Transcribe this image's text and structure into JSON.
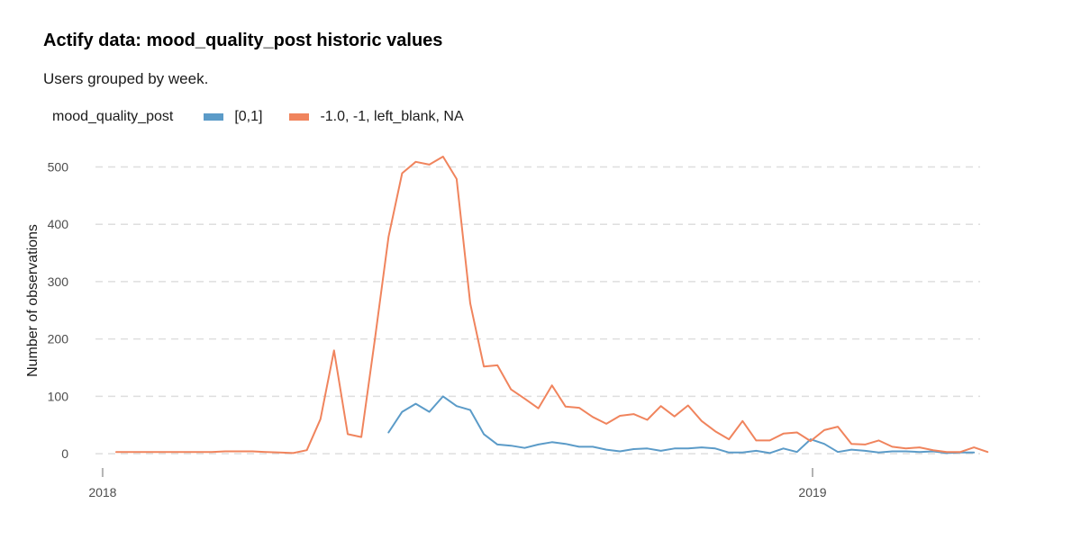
{
  "header": {
    "title": "Actify data: mood_quality_post historic values",
    "subtitle": "Users grouped by week."
  },
  "legend": {
    "title": "mood_quality_post",
    "items": [
      {
        "label": "[0,1]",
        "color": "#5b9bc8"
      },
      {
        "label": "-1.0, -1, left_blank, NA",
        "color": "#f0845d"
      }
    ]
  },
  "chart_data": {
    "type": "line",
    "title": "Actify data: mood_quality_post historic values",
    "subtitle": "Users grouped by week.",
    "xlabel": "",
    "ylabel": "Number of observations",
    "x_axis_type": "date",
    "xlim": [
      "2017-12-20",
      "2019-03-30"
    ],
    "ylim": [
      -25,
      540
    ],
    "y_ticks": [
      0,
      100,
      200,
      300,
      400,
      500
    ],
    "x_ticks": [
      {
        "label": "2018",
        "date": "2018-01-01"
      },
      {
        "label": "2019",
        "date": "2019-01-01"
      }
    ],
    "grid": "horizontal dashed",
    "legend_position": "top-left",
    "series": [
      {
        "name": "[0,1]",
        "color": "#5b9bc8",
        "points": [
          [
            "2018-05-28",
            37
          ],
          [
            "2018-06-04",
            73
          ],
          [
            "2018-06-11",
            87
          ],
          [
            "2018-06-18",
            73
          ],
          [
            "2018-06-25",
            100
          ],
          [
            "2018-07-02",
            83
          ],
          [
            "2018-07-09",
            76
          ],
          [
            "2018-07-16",
            34
          ],
          [
            "2018-07-23",
            16
          ],
          [
            "2018-07-30",
            14
          ],
          [
            "2018-08-06",
            10
          ],
          [
            "2018-08-13",
            16
          ],
          [
            "2018-08-20",
            20
          ],
          [
            "2018-08-27",
            17
          ],
          [
            "2018-09-03",
            12
          ],
          [
            "2018-09-10",
            12
          ],
          [
            "2018-09-17",
            7
          ],
          [
            "2018-09-24",
            4
          ],
          [
            "2018-10-01",
            8
          ],
          [
            "2018-10-08",
            9
          ],
          [
            "2018-10-15",
            5
          ],
          [
            "2018-10-22",
            9
          ],
          [
            "2018-10-29",
            9
          ],
          [
            "2018-11-05",
            11
          ],
          [
            "2018-11-12",
            9
          ],
          [
            "2018-11-19",
            2
          ],
          [
            "2018-11-26",
            2
          ],
          [
            "2018-12-03",
            5
          ],
          [
            "2018-12-10",
            1
          ],
          [
            "2018-12-17",
            9
          ],
          [
            "2018-12-24",
            3
          ],
          [
            "2018-12-31",
            25
          ],
          [
            "2019-01-07",
            17
          ],
          [
            "2019-01-14",
            3
          ],
          [
            "2019-01-21",
            7
          ],
          [
            "2019-01-28",
            5
          ],
          [
            "2019-02-04",
            2
          ],
          [
            "2019-02-11",
            4
          ],
          [
            "2019-02-18",
            4
          ],
          [
            "2019-02-25",
            3
          ],
          [
            "2019-03-04",
            4
          ],
          [
            "2019-03-11",
            1
          ],
          [
            "2019-03-18",
            2
          ],
          [
            "2019-03-25",
            2
          ]
        ]
      },
      {
        "name": "-1.0, -1, left_blank, NA",
        "color": "#f0845d",
        "points": [
          [
            "2018-01-08",
            3
          ],
          [
            "2018-01-15",
            3
          ],
          [
            "2018-01-22",
            3
          ],
          [
            "2018-01-29",
            3
          ],
          [
            "2018-02-05",
            3
          ],
          [
            "2018-02-12",
            3
          ],
          [
            "2018-02-19",
            3
          ],
          [
            "2018-02-26",
            3
          ],
          [
            "2018-03-05",
            4
          ],
          [
            "2018-03-12",
            4
          ],
          [
            "2018-03-19",
            4
          ],
          [
            "2018-03-26",
            3
          ],
          [
            "2018-04-02",
            2
          ],
          [
            "2018-04-09",
            1
          ],
          [
            "2018-04-16",
            6
          ],
          [
            "2018-04-23",
            60
          ],
          [
            "2018-04-30",
            180
          ],
          [
            "2018-05-07",
            34
          ],
          [
            "2018-05-14",
            29
          ],
          [
            "2018-05-21",
            200
          ],
          [
            "2018-05-28",
            378
          ],
          [
            "2018-06-04",
            489
          ],
          [
            "2018-06-11",
            509
          ],
          [
            "2018-06-18",
            504
          ],
          [
            "2018-06-25",
            518
          ],
          [
            "2018-07-02",
            479
          ],
          [
            "2018-07-09",
            262
          ],
          [
            "2018-07-16",
            152
          ],
          [
            "2018-07-23",
            154
          ],
          [
            "2018-07-30",
            112
          ],
          [
            "2018-08-06",
            96
          ],
          [
            "2018-08-13",
            79
          ],
          [
            "2018-08-20",
            119
          ],
          [
            "2018-08-27",
            82
          ],
          [
            "2018-09-03",
            80
          ],
          [
            "2018-09-10",
            64
          ],
          [
            "2018-09-17",
            52
          ],
          [
            "2018-09-24",
            66
          ],
          [
            "2018-10-01",
            69
          ],
          [
            "2018-10-08",
            59
          ],
          [
            "2018-10-15",
            83
          ],
          [
            "2018-10-22",
            65
          ],
          [
            "2018-10-29",
            84
          ],
          [
            "2018-11-05",
            57
          ],
          [
            "2018-11-12",
            39
          ],
          [
            "2018-11-19",
            25
          ],
          [
            "2018-11-26",
            57
          ],
          [
            "2018-12-03",
            23
          ],
          [
            "2018-12-10",
            23
          ],
          [
            "2018-12-17",
            35
          ],
          [
            "2018-12-24",
            37
          ],
          [
            "2018-12-31",
            22
          ],
          [
            "2019-01-07",
            41
          ],
          [
            "2019-01-14",
            47
          ],
          [
            "2019-01-21",
            17
          ],
          [
            "2019-01-28",
            16
          ],
          [
            "2019-02-04",
            23
          ],
          [
            "2019-02-11",
            12
          ],
          [
            "2019-02-18",
            9
          ],
          [
            "2019-02-25",
            11
          ],
          [
            "2019-03-04",
            6
          ],
          [
            "2019-03-11",
            3
          ],
          [
            "2019-03-18",
            3
          ],
          [
            "2019-03-25",
            11
          ],
          [
            "2019-04-01",
            3
          ]
        ]
      }
    ]
  }
}
